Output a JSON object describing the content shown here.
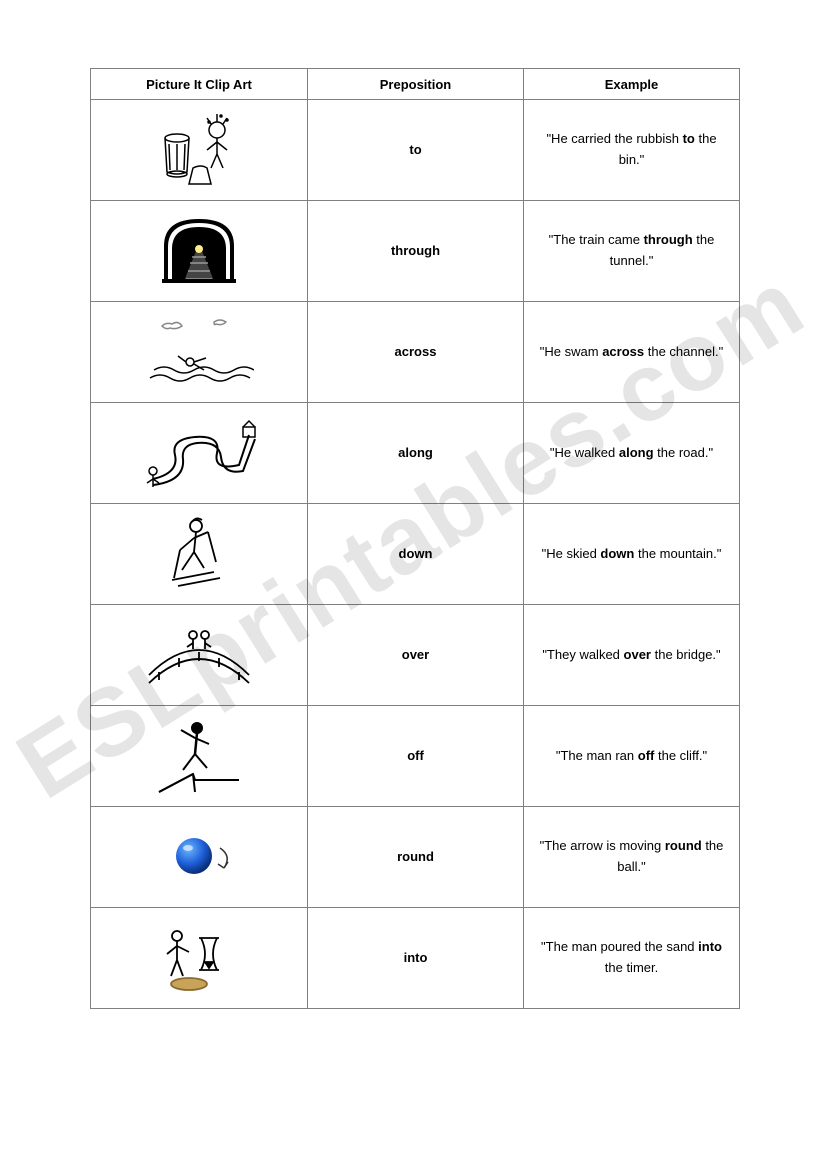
{
  "watermark": "ESLprintables.com",
  "headers": {
    "col1": "Picture It Clip Art",
    "col2": "Preposition",
    "col3": "Example"
  },
  "rows": [
    {
      "prep": "to",
      "ex_before": "\"He carried the rubbish ",
      "ex_bold": "to",
      "ex_after": " the bin.\"",
      "icon": "bin"
    },
    {
      "prep": "through",
      "ex_before": "\"The train came ",
      "ex_bold": "through",
      "ex_after": " the tunnel.\"",
      "icon": "tunnel"
    },
    {
      "prep": "across",
      "ex_before": "\"He swam ",
      "ex_bold": "across",
      "ex_after": " the channel.\"",
      "icon": "swim"
    },
    {
      "prep": "along",
      "ex_before": "\"He walked ",
      "ex_bold": "along",
      "ex_after": " the road.\"",
      "icon": "road"
    },
    {
      "prep": "down",
      "ex_before": "\"He skied ",
      "ex_bold": "down",
      "ex_after": " the mountain.\"",
      "icon": "ski"
    },
    {
      "prep": "over",
      "ex_before": "\"They walked ",
      "ex_bold": "over",
      "ex_after": " the bridge.\"",
      "icon": "bridge"
    },
    {
      "prep": "off",
      "ex_before": "\"The man ran ",
      "ex_bold": "off",
      "ex_after": " the cliff.\"",
      "icon": "cliff"
    },
    {
      "prep": "round",
      "ex_before": "\"The arrow is moving ",
      "ex_bold": "round",
      "ex_after": " the ball.\"",
      "icon": "ball"
    },
    {
      "prep": "into",
      "ex_before": "\"The man poured the sand ",
      "ex_bold": "into",
      "ex_after": " the timer.",
      "icon": "timer"
    }
  ]
}
